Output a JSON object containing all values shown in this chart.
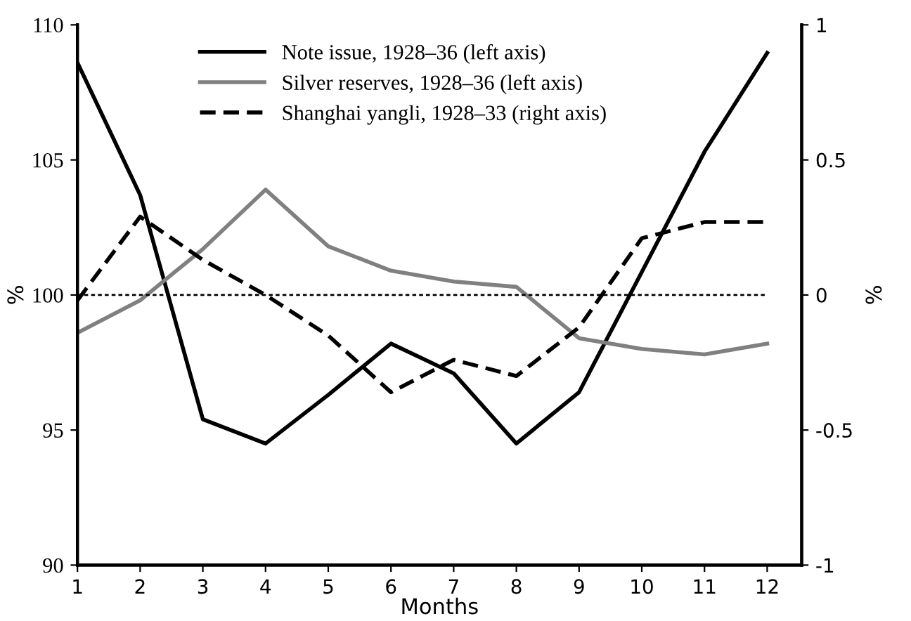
{
  "chart_data": {
    "type": "line",
    "xlabel": "Months",
    "ylabel": "%",
    "y2label": "%",
    "x": [
      1,
      2,
      3,
      4,
      5,
      6,
      7,
      8,
      9,
      10,
      11,
      12
    ],
    "xlim": [
      1,
      12.55
    ],
    "xticks": [
      1,
      2,
      3,
      4,
      5,
      6,
      7,
      8,
      9,
      10,
      11,
      12
    ],
    "ylim": [
      90,
      110
    ],
    "yticks": [
      90,
      95,
      100,
      105,
      110
    ],
    "y2lim": [
      -1,
      1
    ],
    "y2ticks": [
      -1,
      -0.5,
      0,
      0.5,
      1
    ],
    "series": [
      {
        "name": "Note issue, 1928–36 (left axis)",
        "color": "#000000",
        "line_style": "solid",
        "values": [
          108.6,
          103.7,
          95.4,
          94.5,
          96.3,
          98.2,
          97.1,
          94.5,
          96.4,
          100.85,
          105.3,
          108.96
        ]
      },
      {
        "name": "Silver reserves, 1928–36 (left axis)",
        "color": "#808080",
        "line_style": "solid",
        "values": [
          98.6,
          99.8,
          101.7,
          103.9,
          101.8,
          100.9,
          100.5,
          100.3,
          98.4,
          98.0,
          97.8,
          98.2
        ]
      },
      {
        "name": "Shanghai yangli, 1928–33 (right axis)",
        "color": "#000000",
        "line_style": "dashed",
        "axis": "y2",
        "values": [
          -0.02,
          0.29,
          0.13,
          0.0,
          -0.15,
          -0.36,
          -0.24,
          -0.3,
          -0.12,
          0.21,
          0.27,
          0.27
        ]
      }
    ],
    "ref_lines": [
      {
        "axis": "y",
        "value": 100,
        "color": "#000000",
        "line_style": "dotted"
      }
    ],
    "legend": "top",
    "grid": false,
    "marker": "none"
  }
}
